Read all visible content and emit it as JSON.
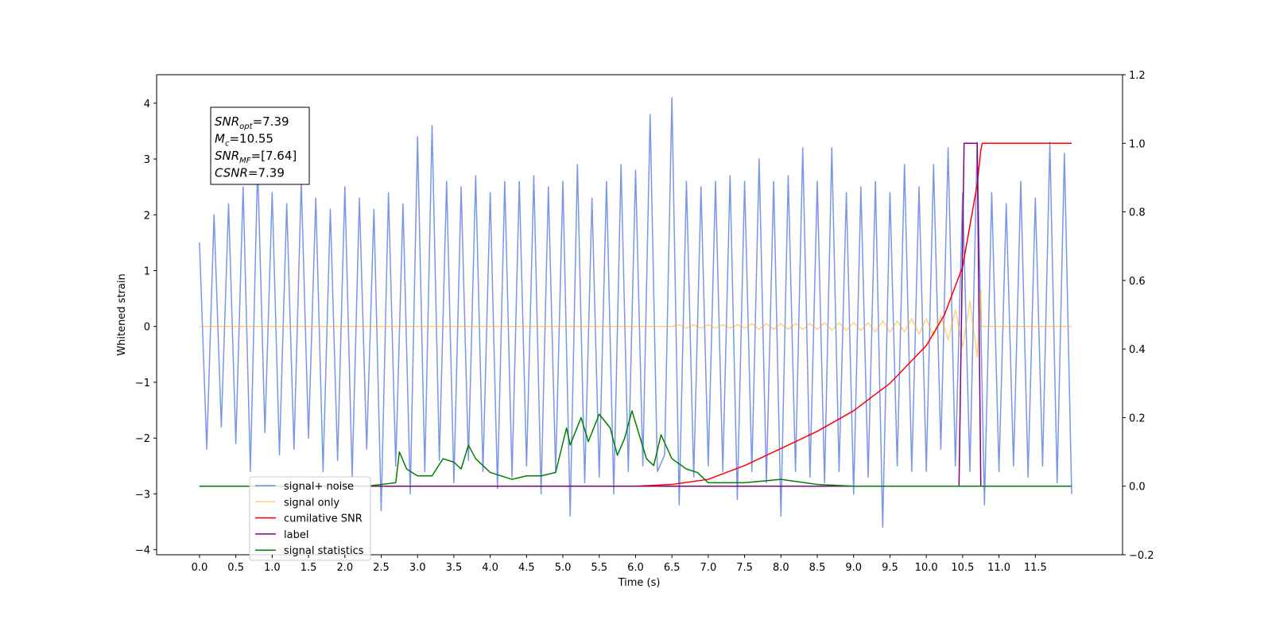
{
  "chart_data": {
    "type": "line",
    "xlabel": "Time (s)",
    "ylabel": "Whitened strain",
    "xlim": [
      -0.59,
      12.7
    ],
    "ylim": [
      -4.09,
      4.51
    ],
    "y2lim": [
      -0.2,
      1.2
    ],
    "xticks": [
      {
        "value": 0,
        "label": "0.0"
      },
      0.5,
      {
        "value": 1,
        "label": "1.0"
      },
      1.5,
      {
        "value": 2,
        "label": "2.0"
      },
      2.5,
      {
        "value": 3,
        "label": "3.0"
      },
      3.5,
      {
        "value": 4,
        "label": "4.0"
      },
      4.5,
      {
        "value": 5,
        "label": "5.0"
      },
      5.5,
      {
        "value": 6,
        "label": "6.0"
      },
      6.5,
      {
        "value": 7,
        "label": "7.0"
      },
      7.5,
      {
        "value": 8,
        "label": "8.0"
      },
      8.5,
      {
        "value": 9,
        "label": "9.0"
      },
      9.5,
      {
        "value": 10,
        "label": "10.0"
      },
      10.5,
      {
        "value": 11,
        "label": "11.0"
      },
      11.5
    ],
    "yticks": [
      {
        "value": -4,
        "label": "−4"
      },
      {
        "value": -3,
        "label": "−3"
      },
      {
        "value": -2,
        "label": "−2"
      },
      {
        "value": -1,
        "label": "−1"
      },
      0,
      1,
      2,
      3,
      4
    ],
    "y2ticks": [
      {
        "value": -0.2,
        "label": "−0.2"
      },
      {
        "value": 0,
        "label": "0.0"
      },
      0.2,
      0.4,
      0.6,
      0.8,
      {
        "value": 1,
        "label": "1.0"
      },
      1.2
    ],
    "annotation": [
      {
        "main": "SNR",
        "sub": "opt",
        "rest": "=7.39"
      },
      {
        "main": "M",
        "sub": "c",
        "rest": "=10.55"
      },
      {
        "main": "SNR",
        "sub": "MF",
        "rest": "=[7.64]"
      },
      {
        "main": "CSNR",
        "rest": "=7.39"
      }
    ],
    "series": [
      {
        "name": "signal+ noise",
        "color": "#4169e1",
        "alpha": 0.7,
        "axis": "y",
        "x": [
          0,
          0.1,
          0.2,
          0.3,
          0.4,
          0.5,
          0.6,
          0.7,
          0.8,
          0.9,
          1,
          1.1,
          1.2,
          1.3,
          1.4,
          1.5,
          1.6,
          1.7,
          1.8,
          1.9,
          2,
          2.1,
          2.2,
          2.3,
          2.4,
          2.5,
          2.6,
          2.7,
          2.8,
          2.9,
          3,
          3.1,
          3.2,
          3.3,
          3.4,
          3.5,
          3.6,
          3.7,
          3.8,
          3.9,
          4,
          4.1,
          4.2,
          4.3,
          4.4,
          4.5,
          4.6,
          4.7,
          4.8,
          4.9,
          5,
          5.1,
          5.2,
          5.3,
          5.4,
          5.5,
          5.6,
          5.7,
          5.8,
          5.9,
          6,
          6.1,
          6.2,
          6.3,
          6.4,
          6.5,
          6.6,
          6.7,
          6.8,
          6.9,
          7,
          7.1,
          7.2,
          7.3,
          7.4,
          7.5,
          7.6,
          7.7,
          7.8,
          7.9,
          8,
          8.1,
          8.2,
          8.3,
          8.4,
          8.5,
          8.6,
          8.7,
          8.8,
          8.9,
          9,
          9.1,
          9.2,
          9.3,
          9.4,
          9.5,
          9.6,
          9.7,
          9.8,
          9.9,
          10,
          10.1,
          10.2,
          10.3,
          10.4,
          10.5,
          10.6,
          10.7,
          10.8,
          10.9,
          11,
          11.1,
          11.2,
          11.3,
          11.4,
          11.5,
          11.6,
          11.7,
          11.8,
          11.9,
          12
        ],
        "values": [
          1.5,
          -2.2,
          2.0,
          -1.8,
          2.2,
          -2.1,
          2.5,
          -2.6,
          2.9,
          -1.9,
          2.4,
          -2.3,
          2.2,
          -2.2,
          2.6,
          -2.0,
          2.3,
          -2.6,
          2.1,
          -2.4,
          2.5,
          -2.7,
          2.3,
          -2.2,
          2.1,
          -3.3,
          2.4,
          -2.5,
          2.2,
          -3.0,
          3.4,
          -2.6,
          3.6,
          -2.4,
          2.6,
          -2.8,
          2.5,
          -2.4,
          2.7,
          -2.6,
          2.4,
          -2.9,
          2.6,
          -2.7,
          2.6,
          -2.5,
          2.7,
          -3.0,
          2.5,
          -2.6,
          2.6,
          -3.4,
          2.9,
          -2.8,
          2.3,
          -2.7,
          2.6,
          -3.0,
          2.9,
          -2.6,
          2.8,
          -2.5,
          3.8,
          -2.6,
          -2.3,
          4.1,
          -3.2,
          2.6,
          -2.7,
          2.5,
          -2.5,
          2.6,
          -2.6,
          2.7,
          -3.1,
          2.6,
          -2.6,
          3.0,
          -2.8,
          2.6,
          -3.4,
          2.7,
          -2.6,
          3.2,
          -2.7,
          2.6,
          -2.8,
          3.2,
          -2.6,
          2.4,
          -3.0,
          2.5,
          -2.7,
          2.6,
          -3.6,
          2.4,
          -2.5,
          2.9,
          -2.6,
          2.5,
          -2.6,
          2.9,
          -2.2,
          3.2,
          -2.5,
          2.4,
          -2.6,
          3.3,
          -3.2,
          2.4,
          -2.6,
          2.2,
          -2.5,
          2.6,
          -2.7,
          2.3,
          -2.5,
          3.3,
          -2.8,
          3.1,
          -3.0
        ]
      },
      {
        "name": "signal only",
        "color": "#ffa500",
        "alpha": 0.5,
        "axis": "y",
        "x": [
          0,
          6.5,
          6.6,
          6.7,
          6.8,
          6.9,
          7,
          7.1,
          7.2,
          7.3,
          7.4,
          7.5,
          7.6,
          7.7,
          7.8,
          7.9,
          8,
          8.1,
          8.2,
          8.3,
          8.4,
          8.5,
          8.6,
          8.7,
          8.8,
          8.9,
          9,
          9.1,
          9.2,
          9.3,
          9.4,
          9.5,
          9.6,
          9.7,
          9.8,
          9.9,
          10,
          10.1,
          10.2,
          10.3,
          10.4,
          10.5,
          10.6,
          10.7,
          10.75,
          10.76,
          12
        ],
        "values": [
          0,
          0,
          0.03,
          -0.03,
          0.03,
          -0.03,
          0.03,
          -0.03,
          0.03,
          -0.03,
          0.03,
          -0.03,
          0.05,
          -0.05,
          0.05,
          -0.05,
          0.05,
          -0.05,
          0.05,
          -0.05,
          0.05,
          -0.05,
          0.07,
          -0.07,
          0.07,
          -0.07,
          0.07,
          -0.07,
          0.07,
          -0.1,
          0.1,
          -0.1,
          0.1,
          -0.1,
          0.14,
          -0.14,
          0.14,
          -0.17,
          0.2,
          -0.24,
          0.3,
          -0.37,
          0.45,
          -0.55,
          0.65,
          0,
          0
        ]
      },
      {
        "name": "cumilative SNR",
        "color": "#ff0000",
        "alpha": 1,
        "axis": "y2",
        "x": [
          0,
          6,
          6.5,
          7,
          7.5,
          8,
          8.5,
          9,
          9.5,
          10,
          10.25,
          10.5,
          10.7,
          10.75,
          10.77,
          12
        ],
        "values": [
          0,
          0,
          0.005,
          0.02,
          0.06,
          0.11,
          0.16,
          0.22,
          0.3,
          0.41,
          0.5,
          0.64,
          0.88,
          0.98,
          1.0,
          1.0
        ]
      },
      {
        "name": "label",
        "color": "#800080",
        "alpha": 1,
        "axis": "y2",
        "x": [
          0,
          10.45,
          10.52,
          10.7,
          10.75
        ],
        "values": [
          0,
          0,
          1,
          1,
          0
        ]
      },
      {
        "name": "signal statistics",
        "color": "#008000",
        "alpha": 1,
        "axis": "y2",
        "x": [
          0,
          2.3,
          2.7,
          2.75,
          2.85,
          3,
          3.2,
          3.35,
          3.5,
          3.6,
          3.7,
          3.8,
          4,
          4.3,
          4.5,
          4.7,
          4.9,
          5.05,
          5.1,
          5.25,
          5.35,
          5.5,
          5.65,
          5.75,
          5.85,
          5.95,
          6.05,
          6.15,
          6.25,
          6.35,
          6.5,
          6.7,
          6.85,
          7,
          7.5,
          8,
          8.5,
          9,
          12
        ],
        "values": [
          0,
          0,
          0.01,
          0.1,
          0.05,
          0.03,
          0.03,
          0.08,
          0.07,
          0.05,
          0.12,
          0.08,
          0.04,
          0.02,
          0.03,
          0.03,
          0.04,
          0.17,
          0.12,
          0.2,
          0.13,
          0.21,
          0.17,
          0.09,
          0.14,
          0.22,
          0.15,
          0.08,
          0.06,
          0.15,
          0.08,
          0.05,
          0.04,
          0.01,
          0.01,
          0.02,
          0.005,
          0,
          0
        ]
      }
    ]
  }
}
